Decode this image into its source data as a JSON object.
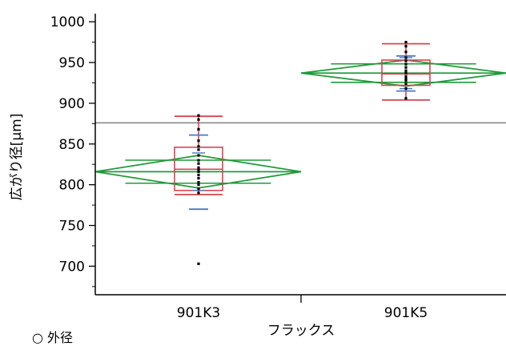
{
  "chart_data": {
    "type": "box",
    "xlabel": "フラックス",
    "ylabel": "広がり径[μm]",
    "categories": [
      "901K3",
      "901K5"
    ],
    "ylim": [
      665,
      1010
    ],
    "yticks": [
      700,
      750,
      800,
      850,
      900,
      950,
      1000
    ],
    "grand_mean": 876,
    "grid": false,
    "groups": [
      {
        "name": "901K3",
        "box": {
          "whisker_low": 788,
          "q1": 793,
          "median": 819,
          "q3": 846,
          "whisker_high": 884
        },
        "diamond": {
          "mean": 816,
          "upper": 836,
          "lower": 796
        },
        "error_bar": {
          "low": 770,
          "high": 861
        },
        "points": [
          703,
          790,
          795,
          800,
          803,
          808,
          812,
          816,
          818,
          821,
          826,
          830,
          836,
          843,
          847,
          854,
          868,
          880,
          885
        ]
      },
      {
        "name": "901K5",
        "box": {
          "whisker_low": 904,
          "q1": 922,
          "median": 936,
          "q3": 953,
          "whisker_high": 973
        },
        "diamond": {
          "mean": 937,
          "upper": 953,
          "lower": 921
        },
        "error_bar": {
          "low": 915,
          "high": 958
        },
        "points": [
          906,
          918,
          924,
          928,
          930,
          933,
          937,
          940,
          944,
          948,
          952,
          956,
          963,
          970,
          975
        ]
      }
    ],
    "colors": {
      "box": "#d64550",
      "diamond": "#1f9a3a",
      "error_bar": "#4a78c2",
      "grand_mean": "#808080",
      "points": "#000000"
    }
  },
  "footer_text": "○ 外径"
}
